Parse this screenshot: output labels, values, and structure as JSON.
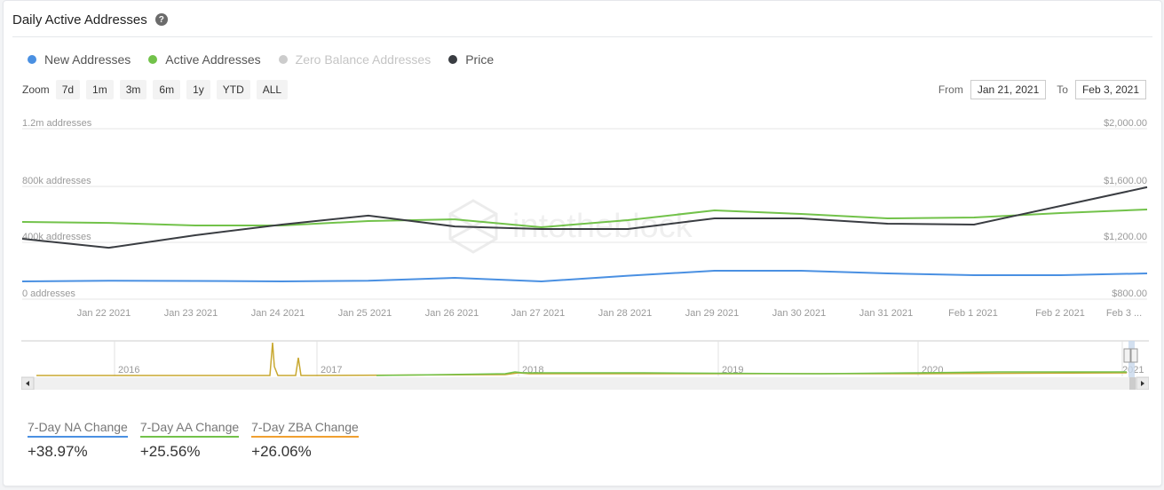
{
  "header": {
    "title": "Daily Active Addresses",
    "help_icon": "?"
  },
  "legend": [
    {
      "label": "New Addresses",
      "color": "#4a90e2",
      "text_color": "#555555"
    },
    {
      "label": "Active Addresses",
      "color": "#72c24a",
      "text_color": "#555555"
    },
    {
      "label": "Zero Balance Addresses",
      "color": "#cccccc",
      "text_color": "#c5c5c5"
    },
    {
      "label": "Price",
      "color": "#3a3d42",
      "text_color": "#555555"
    }
  ],
  "zoom": {
    "label": "Zoom",
    "buttons": [
      "7d",
      "1m",
      "3m",
      "6m",
      "1y",
      "YTD",
      "ALL"
    ]
  },
  "range": {
    "from_label": "From",
    "from_value": "Jan 21, 2021",
    "to_label": "To",
    "to_value": "Feb 3, 2021"
  },
  "watermark": "intotheblock",
  "navigator": {
    "years": [
      "2016",
      "2017",
      "2018",
      "2019",
      "2020",
      "2021"
    ]
  },
  "stats": [
    {
      "label": "7-Day NA Change",
      "value": "+38.97%",
      "color": "#4a90e2"
    },
    {
      "label": "7-Day AA Change",
      "value": "+25.56%",
      "color": "#72c24a"
    },
    {
      "label": "7-Day ZBA Change",
      "value": "+26.06%",
      "color": "#f0a030"
    }
  ],
  "chart_data": {
    "type": "line",
    "title": "Daily Active Addresses",
    "x": [
      "Jan 21 2021",
      "Jan 22 2021",
      "Jan 23 2021",
      "Jan 24 2021",
      "Jan 25 2021",
      "Jan 26 2021",
      "Jan 27 2021",
      "Jan 28 2021",
      "Jan 29 2021",
      "Jan 30 2021",
      "Jan 31 2021",
      "Feb 1 2021",
      "Feb 2 2021",
      "Feb 3 2021"
    ],
    "x_tick_labels": [
      "Jan 22 2021",
      "Jan 23 2021",
      "Jan 24 2021",
      "Jan 25 2021",
      "Jan 26 2021",
      "Jan 27 2021",
      "Jan 28 2021",
      "Jan 29 2021",
      "Jan 30 2021",
      "Jan 31 2021",
      "Feb 1 2021",
      "Feb 2 2021",
      "Feb 3 ..."
    ],
    "y_left": {
      "label": "addresses",
      "ticks": [
        "0 addresses",
        "400k addresses",
        "800k addresses",
        "1.2m addresses"
      ],
      "range": [
        0,
        1200000
      ]
    },
    "y_right": {
      "label": "Price",
      "ticks": [
        "$800.00",
        "$1,200.00",
        "$1,600.00",
        "$2,000.00"
      ],
      "range": [
        800,
        2000
      ]
    },
    "series": [
      {
        "name": "New Addresses",
        "axis": "left",
        "color": "#4a90e2",
        "values": [
          125000,
          130000,
          128000,
          125000,
          130000,
          150000,
          125000,
          165000,
          200000,
          200000,
          181000,
          169000,
          169000,
          181000
        ]
      },
      {
        "name": "Active Addresses",
        "axis": "left",
        "color": "#72c24a",
        "values": [
          544000,
          537000,
          519000,
          519000,
          550000,
          562000,
          506000,
          556000,
          625000,
          600000,
          569000,
          575000,
          606000,
          631000
        ]
      },
      {
        "name": "Zero Balance Addresses",
        "axis": "left",
        "color": "#cccccc",
        "hidden": true,
        "values": []
      },
      {
        "name": "Price",
        "axis": "right",
        "color": "#3a3d42",
        "values": [
          1225,
          1162,
          1250,
          1325,
          1388,
          1312,
          1294,
          1294,
          1369,
          1369,
          1331,
          1325,
          1456,
          1588
        ]
      }
    ],
    "grid": true,
    "legend_position": "top-left"
  }
}
